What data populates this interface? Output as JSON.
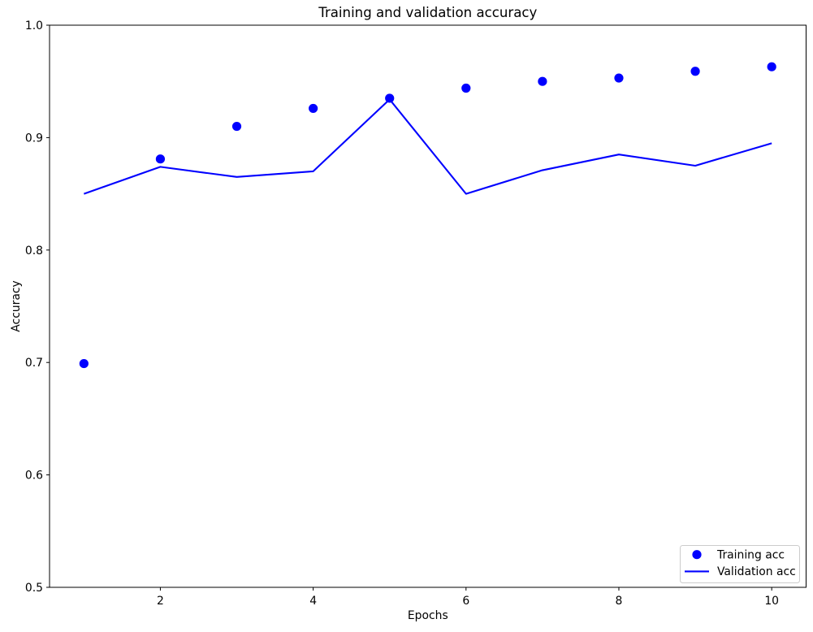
{
  "chart_data": {
    "type": "line",
    "title": "Training and validation accuracy",
    "xlabel": "Epochs",
    "ylabel": "Accuracy",
    "x": [
      1,
      2,
      3,
      4,
      5,
      6,
      7,
      8,
      9,
      10
    ],
    "series": [
      {
        "name": "Training acc",
        "style": "scatter",
        "marker": "circle",
        "color": "#0000ff",
        "values": [
          0.699,
          0.881,
          0.91,
          0.926,
          0.935,
          0.944,
          0.95,
          0.953,
          0.959,
          0.963
        ]
      },
      {
        "name": "Validation acc",
        "style": "line",
        "color": "#0000ff",
        "values": [
          0.85,
          0.874,
          0.865,
          0.87,
          0.934,
          0.85,
          0.871,
          0.885,
          0.875,
          0.895
        ]
      }
    ],
    "xlim": [
      0.55,
      10.45
    ],
    "ylim": [
      0.5,
      1.0
    ],
    "xticks": [
      2,
      4,
      6,
      8,
      10
    ],
    "yticks": [
      0.5,
      0.6,
      0.7,
      0.8,
      0.9,
      1.0
    ],
    "grid": false,
    "legend_position": "lower right"
  }
}
